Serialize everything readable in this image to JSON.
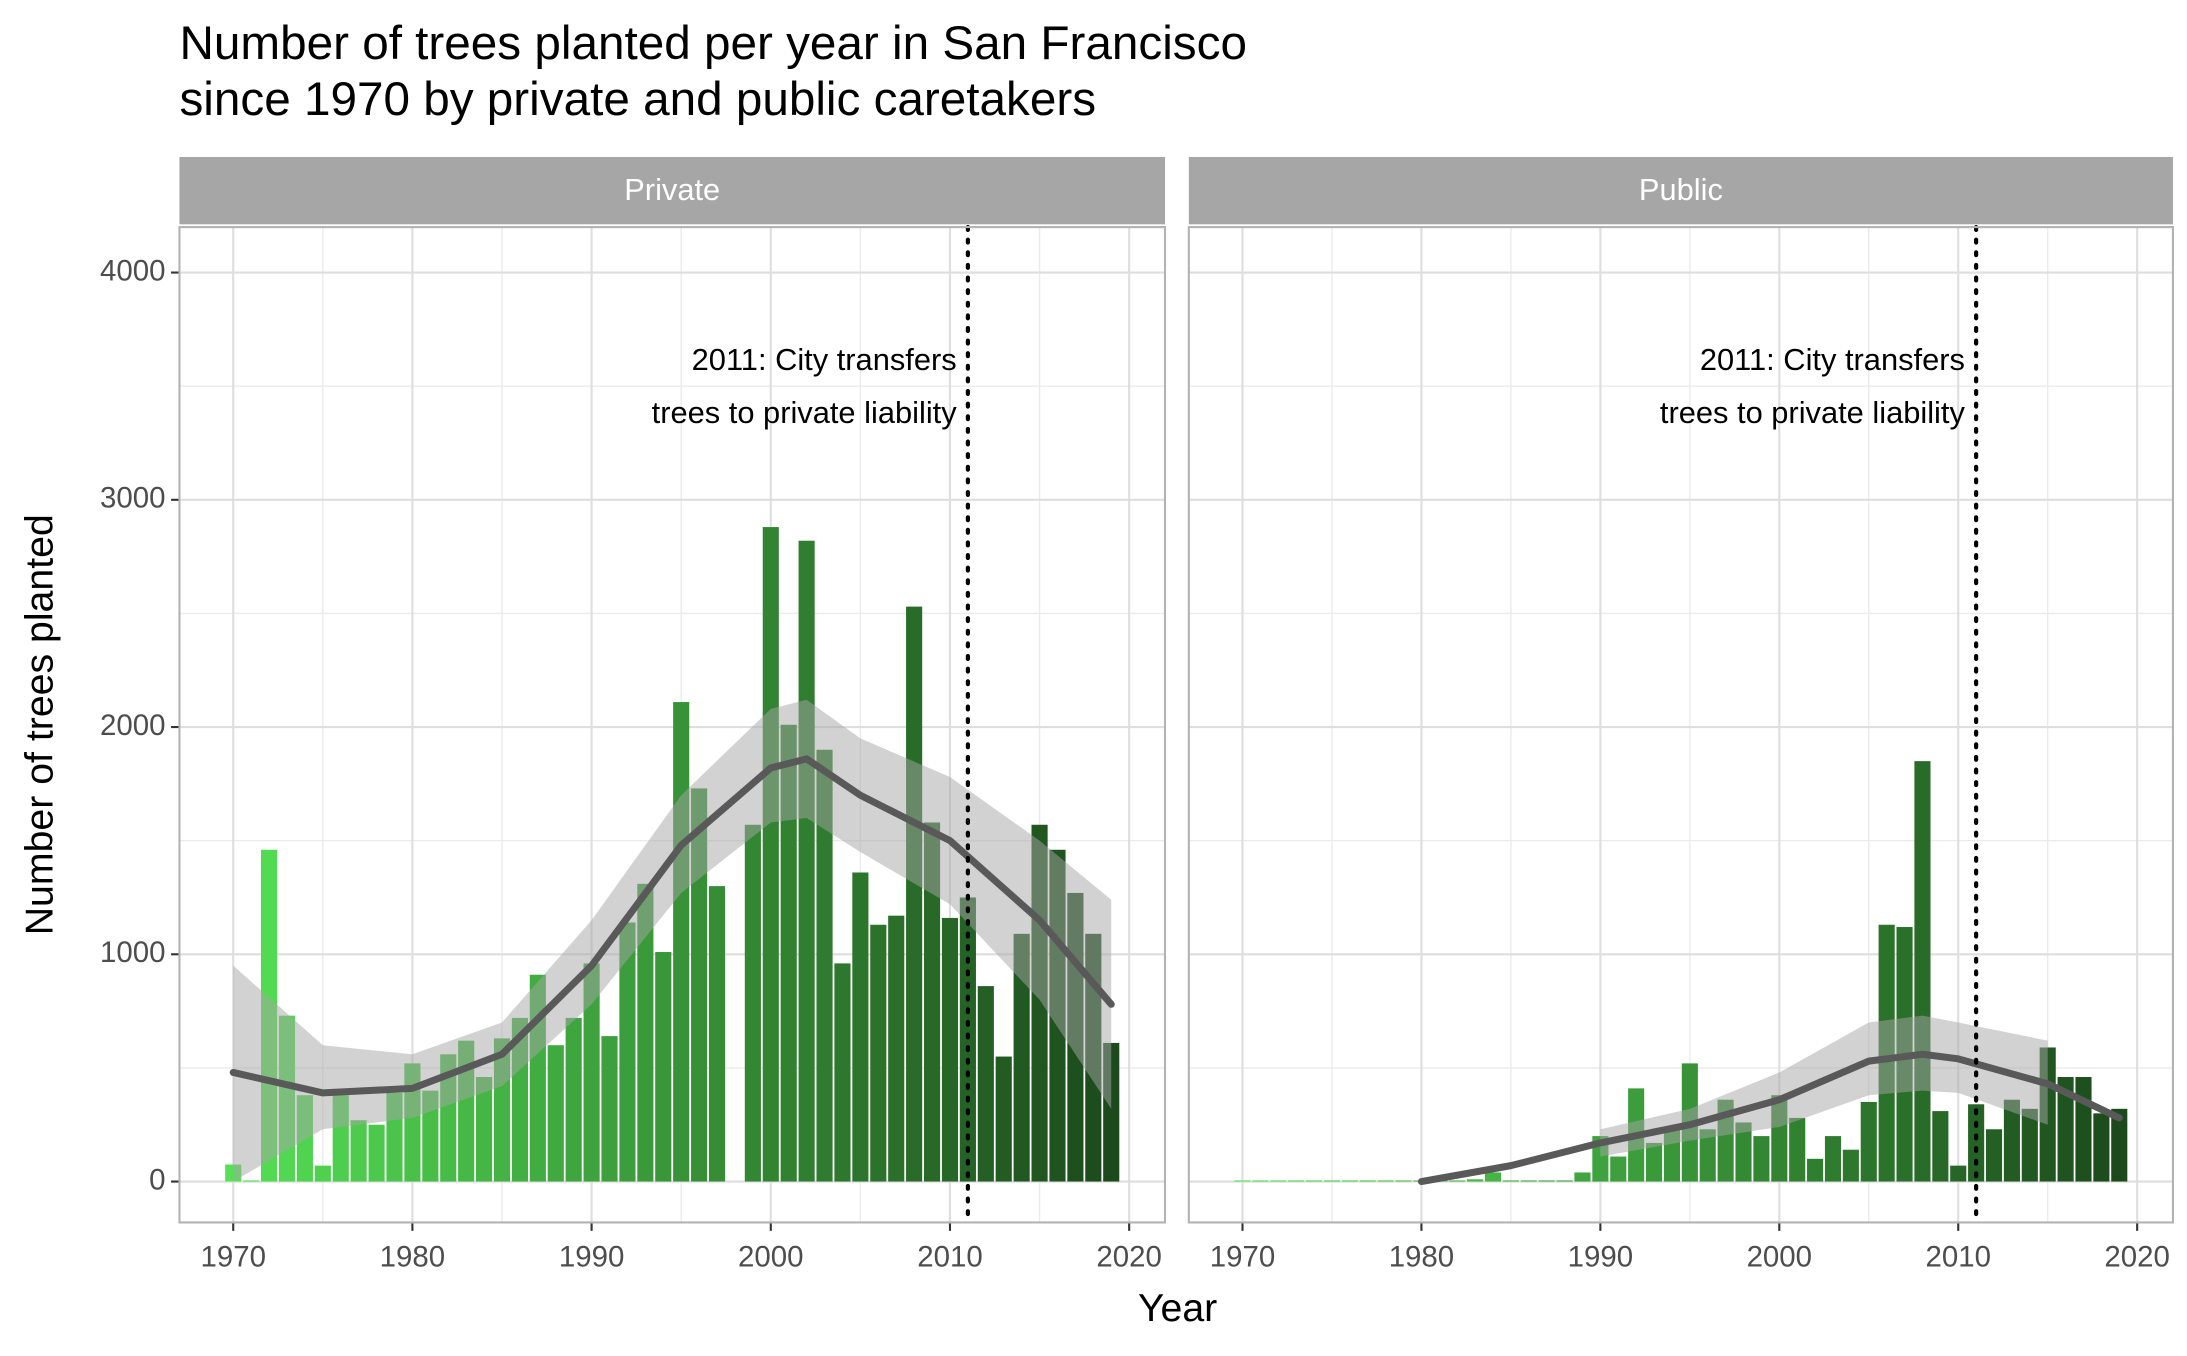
{
  "chart_data": {
    "type": "bar",
    "title": [
      "Number of trees planted per year in San Francisco",
      "since 1970 by private and public caretakers"
    ],
    "x_label": "Year",
    "y_label": "Number of trees planted",
    "xlim": [
      1967,
      2022
    ],
    "xticks": [
      1970,
      1980,
      1990,
      2000,
      2010,
      2020
    ],
    "xminor": [
      1975,
      1985,
      1995,
      2005,
      2015
    ],
    "ylim": [
      -180,
      4200
    ],
    "yticks": [
      0,
      1000,
      2000,
      3000,
      4000
    ],
    "yminor": [
      500,
      1500,
      2500,
      3500
    ],
    "grid": true,
    "color_low": "#55e055",
    "color_high": "#1c4a1c",
    "trend_color": "#595959",
    "band_color": "#a6a6a6",
    "vline": 2011,
    "annotation": [
      "2011: City transfers",
      "trees to private liability"
    ],
    "x": [
      1970,
      1971,
      1972,
      1973,
      1974,
      1975,
      1976,
      1977,
      1978,
      1979,
      1980,
      1981,
      1982,
      1983,
      1984,
      1985,
      1986,
      1987,
      1988,
      1989,
      1990,
      1991,
      1992,
      1993,
      1994,
      1995,
      1996,
      1997,
      1998,
      1999,
      2000,
      2001,
      2002,
      2003,
      2004,
      2005,
      2006,
      2007,
      2008,
      2009,
      2010,
      2011,
      2012,
      2013,
      2014,
      2015,
      2016,
      2017,
      2018,
      2019
    ],
    "panels": [
      {
        "name": "Private",
        "values": [
          75,
          5,
          1460,
          730,
          380,
          70,
          380,
          270,
          250,
          390,
          520,
          400,
          560,
          620,
          460,
          630,
          720,
          910,
          600,
          720,
          960,
          640,
          1140,
          1310,
          1010,
          2110,
          1730,
          1300,
          null,
          1570,
          2880,
          2010,
          2820,
          1900,
          960,
          1360,
          1130,
          1170,
          2530,
          1580,
          1160,
          1250,
          860,
          550,
          1090,
          1570,
          1460,
          1270,
          1090,
          610
        ],
        "trend": {
          "x": [
            1970,
            1975,
            1980,
            1985,
            1990,
            1995,
            2000,
            2002,
            2005,
            2010,
            2015,
            2019
          ],
          "values": [
            480,
            390,
            410,
            560,
            950,
            1480,
            1820,
            1860,
            1700,
            1500,
            1150,
            780
          ],
          "lower": [
            0,
            230,
            280,
            420,
            780,
            1270,
            1580,
            1600,
            1450,
            1220,
            800,
            320
          ],
          "upper": [
            950,
            600,
            560,
            700,
            1150,
            1700,
            2080,
            2120,
            1950,
            1780,
            1500,
            1240
          ]
        }
      },
      {
        "name": "Public",
        "values": [
          5,
          5,
          5,
          5,
          5,
          5,
          5,
          5,
          5,
          5,
          5,
          5,
          5,
          10,
          40,
          5,
          5,
          5,
          5,
          40,
          200,
          110,
          410,
          170,
          240,
          520,
          230,
          360,
          260,
          200,
          380,
          280,
          100,
          200,
          140,
          350,
          1130,
          1120,
          1850,
          310,
          70,
          340,
          230,
          360,
          320,
          590,
          460,
          460,
          300,
          320
        ],
        "trend": {
          "x": [
            1980,
            1985,
            1990,
            1995,
            2000,
            2005,
            2008,
            2010,
            2015,
            2019
          ],
          "values": [
            0,
            70,
            170,
            250,
            360,
            530,
            560,
            540,
            430,
            280
          ],
          "lower": [
            null,
            null,
            110,
            180,
            240,
            380,
            400,
            390,
            250,
            null
          ],
          "upper": [
            null,
            null,
            230,
            320,
            480,
            700,
            730,
            700,
            620,
            null
          ]
        }
      }
    ]
  }
}
